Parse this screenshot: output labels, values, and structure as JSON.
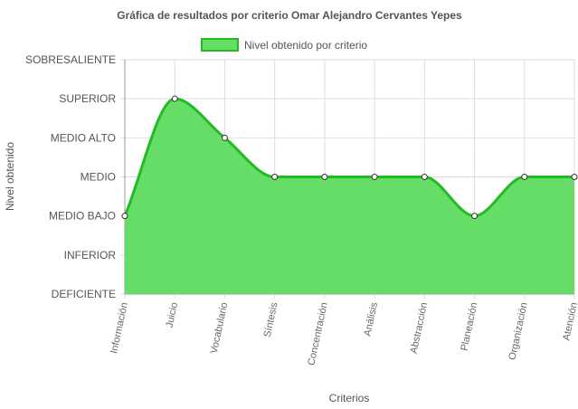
{
  "chart_data": {
    "type": "area",
    "title": "Gráfica de resultados por criterio Omar Alejandro Cervantes Yepes",
    "xlabel": "Criterios",
    "ylabel": "Nivel obtenido",
    "legend": {
      "label": "Nivel obtenido por criterio",
      "placement": "top"
    },
    "y_levels": [
      "DEFICIENTE",
      "INFERIOR",
      "MEDIO BAJO",
      "MEDIO",
      "MEDIO ALTO",
      "SUPERIOR",
      "SOBRESALIENTE"
    ],
    "categories": [
      "Información",
      "Juicio",
      "Vocabulario",
      "Síntesis",
      "Concentración",
      "Análisis",
      "Abstracción",
      "Planeación",
      "Organización",
      "Atención"
    ],
    "series": [
      {
        "name": "Nivel obtenido por criterio",
        "values": [
          "MEDIO BAJO",
          "SUPERIOR",
          "MEDIO ALTO",
          "MEDIO",
          "MEDIO",
          "MEDIO",
          "MEDIO",
          "MEDIO BAJO",
          "MEDIO",
          "MEDIO"
        ]
      }
    ],
    "grid": true,
    "colors": {
      "fill": "#66dd66",
      "line": "#22bb22",
      "point_fill": "#ffffff",
      "point_stroke": "#333333",
      "grid": "#dddddd",
      "axis": "#999999"
    }
  }
}
